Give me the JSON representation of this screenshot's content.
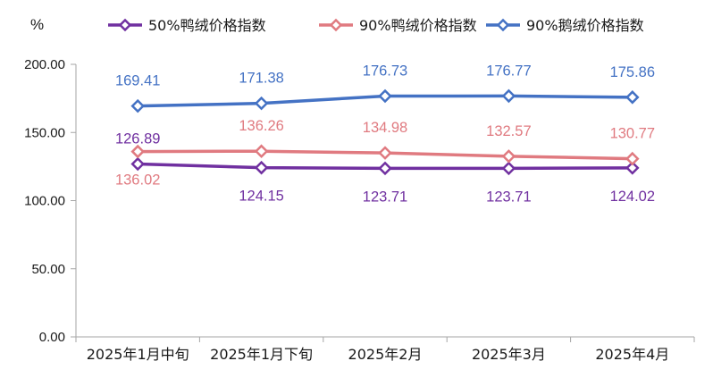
{
  "chart_data": {
    "type": "line",
    "y_unit": "%",
    "categories": [
      "2025年1月中旬",
      "2025年1月下旬",
      "2025年2月",
      "2025年3月",
      "2025年4月"
    ],
    "y_ticks": [
      "0.00",
      "50.00",
      "100.00",
      "150.00",
      "200.00"
    ],
    "ylim": [
      0,
      200
    ],
    "grid": false,
    "legend_position": "top",
    "series": [
      {
        "name": "50%鸭绒价格指数",
        "color": "#7030a0",
        "values": [
          126.89,
          124.15,
          123.71,
          123.71,
          124.02
        ],
        "labels": [
          "126.89",
          "124.15",
          "123.71",
          "123.71",
          "124.02"
        ],
        "label_positions": [
          "above",
          "below",
          "below",
          "below",
          "below"
        ]
      },
      {
        "name": "90%鸭绒价格指数",
        "color": "#e07a80",
        "values": [
          136.02,
          136.26,
          134.98,
          132.57,
          130.77
        ],
        "labels": [
          "136.02",
          "136.26",
          "134.98",
          "132.57",
          "130.77"
        ],
        "label_positions": [
          "below",
          "above",
          "above",
          "above",
          "above"
        ]
      },
      {
        "name": "90%鹅绒价格指数",
        "color": "#4472c4",
        "values": [
          169.41,
          171.38,
          176.73,
          176.77,
          175.86
        ],
        "labels": [
          "169.41",
          "171.38",
          "176.73",
          "176.77",
          "175.86"
        ],
        "label_positions": [
          "above",
          "above",
          "above",
          "above",
          "above"
        ]
      }
    ]
  }
}
